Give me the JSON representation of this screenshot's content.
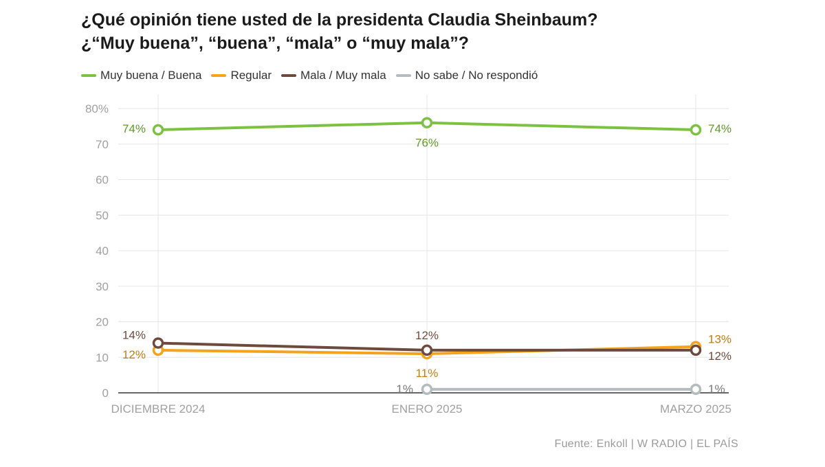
{
  "title_line1": "¿Qué opinión tiene usted de la presidenta Claudia Sheinbaum?",
  "title_line2": "¿“Muy buena”, “buena”, “mala” o “muy mala”?",
  "source": "Fuente: Enkoll | W RADIO | EL PAÍS",
  "chart_data": {
    "type": "line",
    "categories": [
      "DICIEMBRE 2024",
      "ENERO 2025",
      "MARZO 2025"
    ],
    "ylim": [
      0,
      80
    ],
    "yticks": [
      0,
      10,
      20,
      30,
      40,
      50,
      60,
      70,
      80
    ],
    "ytick_labels": [
      "0",
      "10",
      "20",
      "30",
      "40",
      "50",
      "60",
      "70",
      "80%"
    ],
    "grid": true,
    "legend_position": "top-left",
    "series": [
      {
        "name": "Muy buena / Buena",
        "color": "#7dc142",
        "label_color": "#5e9a2a",
        "values": [
          74,
          76,
          74
        ],
        "labels": [
          "74%",
          "76%",
          "74%"
        ]
      },
      {
        "name": "Regular",
        "color": "#f5a31c",
        "label_color": "#c07e10",
        "values": [
          12,
          11,
          13
        ],
        "labels": [
          "12%",
          "11%",
          "13%"
        ]
      },
      {
        "name": "Mala / Muy mala",
        "color": "#6e4a3c",
        "label_color": "#6e4a3c",
        "values": [
          14,
          12,
          12
        ],
        "labels": [
          "14%",
          "12%",
          "12%"
        ]
      },
      {
        "name": "No sabe / No respondió",
        "color": "#b5bcbf",
        "label_color": "#777777",
        "values": [
          null,
          1,
          1
        ],
        "labels": [
          "",
          "1%",
          "1%"
        ]
      }
    ]
  }
}
